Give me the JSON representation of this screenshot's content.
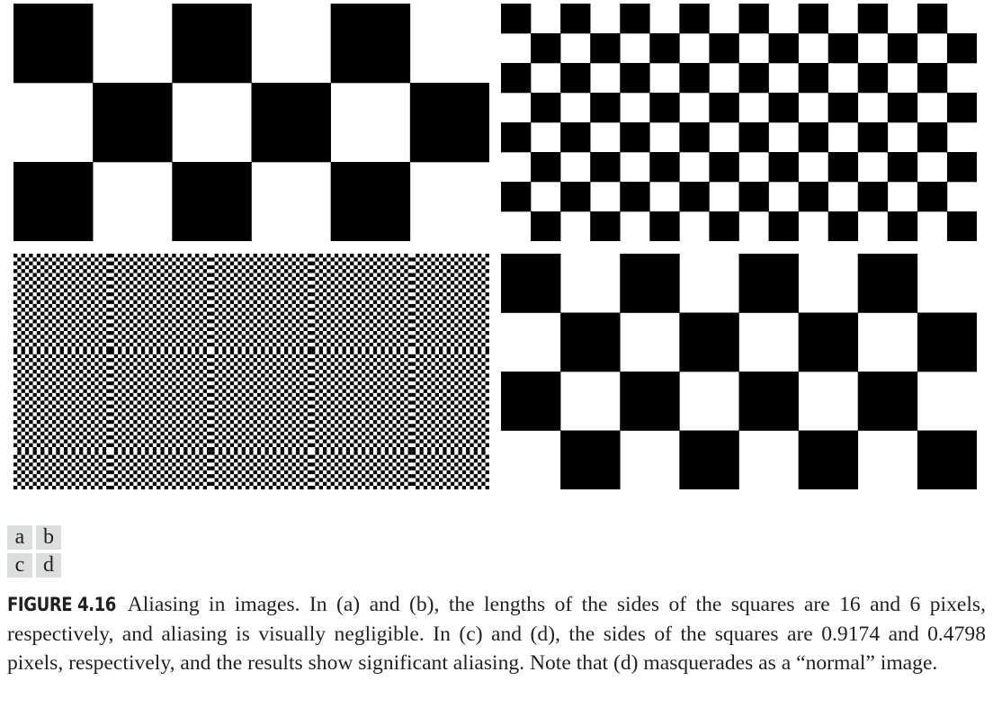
{
  "figure": {
    "panels": [
      {
        "id": "a",
        "pattern": "checkerboard"
      },
      {
        "id": "b",
        "pattern": "checkerboard"
      },
      {
        "id": "c",
        "pattern": "aliased-checkerboard"
      },
      {
        "id": "d",
        "pattern": "checkerboard"
      }
    ],
    "legend": {
      "a": "a",
      "b": "b",
      "c": "c",
      "d": "d"
    },
    "caption": {
      "label": "FIGURE 4.16",
      "text": "Aliasing in images. In (a) and (b), the lengths of the sides of the squares are 16 and 6 pixels, respectively, and aliasing is visually negligible. In (c) and (d), the sides of the squares are 0.9174 and 0.4798 pixels, respectively, and the results show significant aliasing. Note that (d) masquerades as a “normal” image."
    },
    "colors": {
      "dark": "#000000",
      "light": "#ffffff",
      "legend_bg": "#dcdddd",
      "text": "#231f20"
    }
  }
}
